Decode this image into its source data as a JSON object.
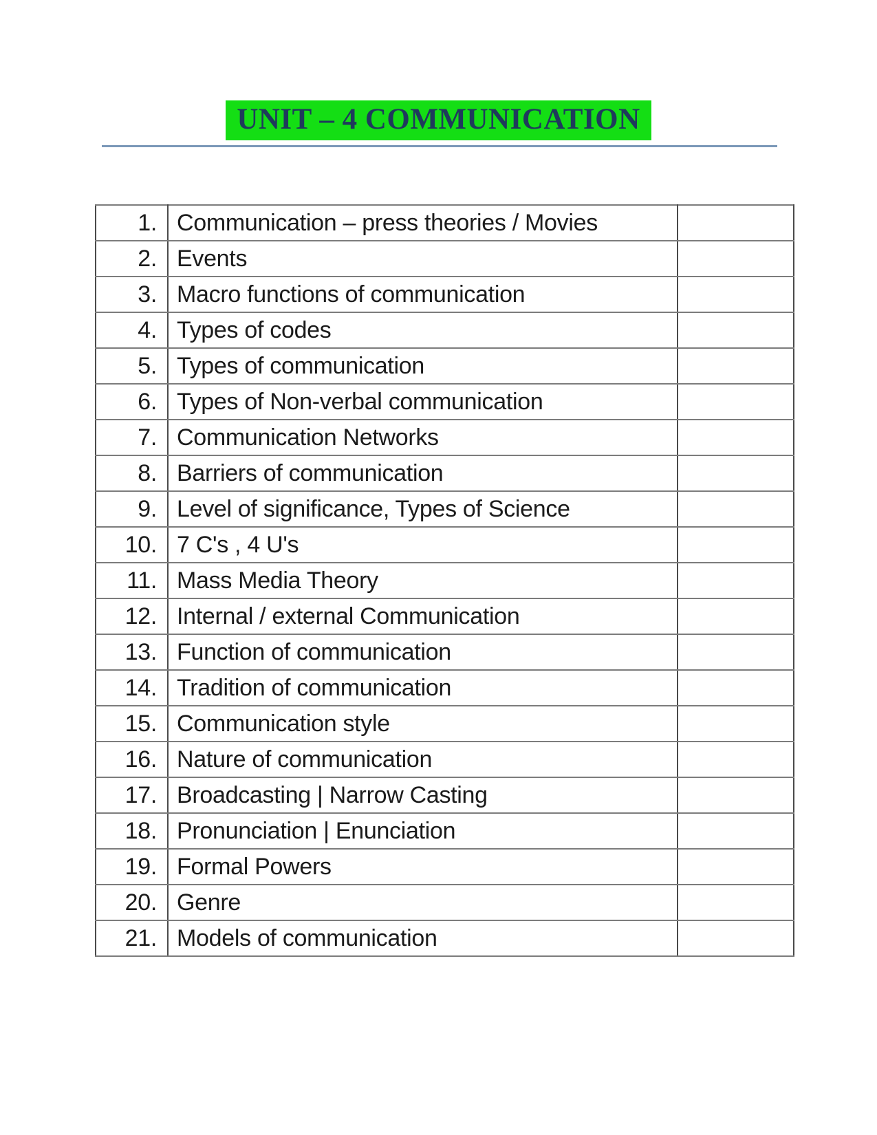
{
  "page": {
    "title": "UNIT – 4 COMMUNICATION"
  },
  "colors": {
    "title_highlight": "#14de14",
    "title_text": "#1f3a5c",
    "rule": "#7b98b8",
    "border_horizontal": "#7c7c7c",
    "border_vertical": "#4a4a4a",
    "text": "#1b1b1b",
    "page_bg": "#ffffff"
  },
  "table": {
    "rows": [
      {
        "num": "1.",
        "topic": "Communication – press theories / Movies",
        "note": ""
      },
      {
        "num": "2.",
        "topic": "Events",
        "note": ""
      },
      {
        "num": "3.",
        "topic": "Macro functions of communication",
        "note": ""
      },
      {
        "num": "4.",
        "topic": "Types of codes",
        "note": ""
      },
      {
        "num": "5.",
        "topic": "Types of communication",
        "note": ""
      },
      {
        "num": "6.",
        "topic": "Types of Non-verbal communication",
        "note": ""
      },
      {
        "num": "7.",
        "topic": "Communication Networks",
        "note": ""
      },
      {
        "num": "8.",
        "topic": "Barriers of communication",
        "note": ""
      },
      {
        "num": "9.",
        "topic": "Level of significance, Types of Science",
        "note": ""
      },
      {
        "num": "10.",
        "topic": "7 C's , 4 U's",
        "note": ""
      },
      {
        "num": "11.",
        "topic": "Mass Media Theory",
        "note": ""
      },
      {
        "num": "12.",
        "topic": "Internal / external Communication",
        "note": ""
      },
      {
        "num": "13.",
        "topic": "Function of communication",
        "note": ""
      },
      {
        "num": "14.",
        "topic": "Tradition of communication",
        "note": ""
      },
      {
        "num": "15.",
        "topic": "Communication style",
        "note": ""
      },
      {
        "num": "16.",
        "topic": "Nature of communication",
        "note": ""
      },
      {
        "num": "17.",
        "topic": "Broadcasting | Narrow Casting",
        "note": ""
      },
      {
        "num": "18.",
        "topic": "Pronunciation | Enunciation",
        "note": ""
      },
      {
        "num": "19.",
        "topic": "Formal Powers",
        "note": ""
      },
      {
        "num": "20.",
        "topic": "Genre",
        "note": ""
      },
      {
        "num": "21.",
        "topic": "Models of communication",
        "note": ""
      }
    ]
  }
}
